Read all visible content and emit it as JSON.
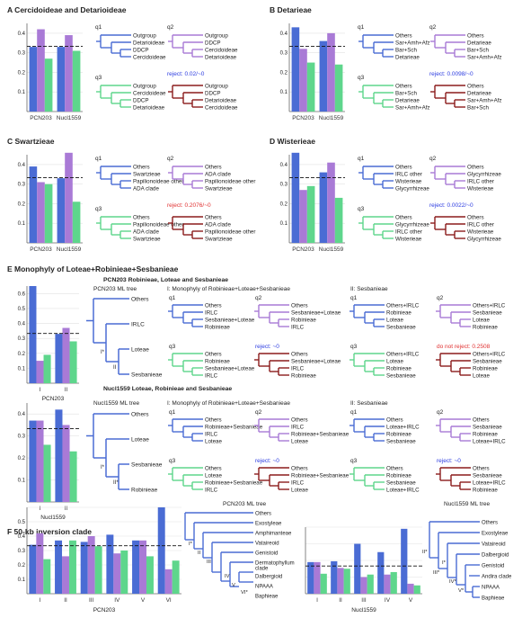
{
  "colors": {
    "blue": "#4a6cd4",
    "purple": "#a97ad6",
    "green": "#5ed68c",
    "red": "#8b1c1c",
    "reject_blue": "#2b3be0",
    "reject_red": "#e03030",
    "axis": "#666666",
    "grid": "#e2e2e2"
  },
  "labels": {
    "q1": "q1",
    "q2": "q2",
    "q3": "q3",
    "pcn203": "PCN203",
    "nucl1559": "Nucl1559",
    "I": "I",
    "II": "II",
    "III": "III",
    "IV": "IV",
    "V": "V",
    "VI": "VI",
    "tick_0": "0",
    "tick_01": "0.1",
    "tick_02": "0.2",
    "tick_03": "0.3",
    "tick_04": "0.4",
    "tick_05": "0.5",
    "tick_06": "0.6"
  },
  "panelA": {
    "title": "A Cercidoideae and Detarioideae",
    "reject": "reject: 0.02/~0",
    "q1": [
      "Outgroup",
      "Detarioideae",
      "DDCP",
      "Cercidoideae"
    ],
    "q2": [
      "Outgroup",
      "DDCP",
      "Cercidoideae",
      "Detarioideae"
    ],
    "q3": [
      "Outgroup",
      "Cercidoideae",
      "DDCP",
      "Detarioideae"
    ],
    "red": [
      "Outgroup",
      "DDCP",
      "Detarioideae",
      "Cercidoideae"
    ]
  },
  "panelB": {
    "title": "B Detarieae",
    "reject": "reject: 0.0098/~0",
    "q1": [
      "Others",
      "Sar+Amh+Afz",
      "Bar+Sch",
      "Detarieae"
    ],
    "q2": [
      "Others",
      "Detarieae",
      "Bar+Sch",
      "Sar+Amh+Afz"
    ],
    "q3": [
      "Others",
      "Bar+Sch",
      "Detarieae",
      "Sar+Amh+Afz"
    ],
    "red": [
      "Others",
      "Detarieae",
      "Sar+Amh+Afz",
      "Bar+Sch"
    ]
  },
  "panelC": {
    "title": "C Swartzieae",
    "reject": "reject: 0.2076/~0",
    "q1": [
      "Others",
      "Swartzieae",
      "Papilionoideae other",
      "ADA clade"
    ],
    "q2": [
      "Others",
      "ADA clade",
      "Papilionoideae other",
      "Swartzieae"
    ],
    "q3": [
      "Others",
      "Papilionoideae other",
      "ADA clade",
      "Swartzieae"
    ],
    "red": [
      "Others",
      "ADA clade",
      "Papilionoideae other",
      "Swartzieae"
    ]
  },
  "panelD": {
    "title": "D Wisterieae",
    "reject": "reject: 0.0022/~0",
    "q1": [
      "Others",
      "IRLC other",
      "Wisterieae",
      "Glycyrrhizeae"
    ],
    "q2": [
      "Others",
      "Glycyrrhizeae",
      "IRLC other",
      "Wisterieae"
    ],
    "q3": [
      "Others",
      "Glycyrrhizeae",
      "IRLC other",
      "Wisterieae"
    ],
    "red": [
      "Others",
      "IRLC other",
      "Wisterieae",
      "Glycyrrhizeae"
    ]
  },
  "panelE": {
    "title": "E Monophyly of Loteae+Robinieae+Sesbanieae",
    "pcn_subtitle": "PCN203 Robinieae, Loteae and Sesbanieae",
    "nucl_subtitle": "Nucl1559 Loteae, Robinieae and Sesbanieae",
    "hyp1": "I: Monophyly of Robinieae+Loteae+Sesbanieae",
    "hyp1_nucl": "I: Monophyly of Robinieae+Loteae+Sesbanieae",
    "hyp2": "II: Sesbanieae",
    "pcn_ml_title": "PCN203 ML tree",
    "pcn_ml": [
      "Others",
      "IRLC",
      "Loteae",
      "Sesbanieae"
    ],
    "pcn_ml_nodes": [
      "I*",
      "II"
    ],
    "nucl_ml_title": "Nucl1559 ML tree",
    "nucl_ml": [
      "Others",
      "Loteae",
      "Sesbanieae",
      "Robinieae"
    ],
    "nucl_ml_nodes": [
      "I*",
      "II*"
    ],
    "p1": {
      "reject": "reject: ~0",
      "q1": [
        "Others",
        "IRLC",
        "Sesbanieae+Loteae",
        "Robinieae"
      ],
      "q2": [
        "Others",
        "Sesbanieae+Loteae",
        "Robinieae",
        "IRLC"
      ],
      "q3": [
        "Others",
        "Robinieae",
        "Sesbanieae+Loteae",
        "IRLC"
      ],
      "red": [
        "Others",
        "Sesbanieae+Loteae",
        "IRLC",
        "Robinieae"
      ]
    },
    "p2": {
      "reject": "do not reject: 0.2508",
      "q1": [
        "Others+IRLC",
        "Robinieae",
        "Loteae",
        "Sesbanieae"
      ],
      "q2": [
        "Others+IRLC",
        "Sesbanieae",
        "Loteae",
        "Robinieae"
      ],
      "q3": [
        "Others+IRLC",
        "Loteae",
        "Robinieae",
        "Sesbanieae"
      ],
      "red": [
        "Others+IRLC",
        "Sesbanieae",
        "Robinieae",
        "Loteae"
      ]
    },
    "n1": {
      "reject": "reject: ~0",
      "q1": [
        "Others",
        "Robinieae+Sesbanieae",
        "IRLC",
        "Loteae"
      ],
      "q2": [
        "Others",
        "IRLC",
        "Robinieae+Sesbanieae",
        "Loteae"
      ],
      "q3": [
        "Others",
        "Loteae",
        "Robinieae+Sesbanieae",
        "IRLC"
      ],
      "red": [
        "Others",
        "Robinieae+Sesbanieae",
        "IRLC",
        "Loteae"
      ]
    },
    "n2": {
      "reject": "reject: ~0",
      "q1": [
        "Others",
        "Loteae+IRLC",
        "Robinieae",
        "Sesbanieae"
      ],
      "q2": [
        "Others",
        "Sesbanieae",
        "Robinieae",
        "Loteae+IRLC"
      ],
      "q3": [
        "Others",
        "Robinieae",
        "Sesbanieae",
        "Loteae+IRLC"
      ],
      "red": [
        "Others",
        "Sesbanieae",
        "Loteae+IRLC",
        "Robinieae"
      ]
    }
  },
  "panelF": {
    "title": "F 50-kb inversion clade",
    "pcn_ml_title": "PCN203 ML tree",
    "pcn_taxa": [
      "Others",
      "Exostyleae",
      "Amphimanteae",
      "Vataireoid",
      "Genistoid",
      "Dermatophyllum",
      "clade",
      "Dalbergioid",
      "NPAAA",
      "Baphieae"
    ],
    "pcn_nodes": [
      "I*",
      "II",
      "III",
      "IV",
      "V",
      "VI*"
    ],
    "nucl_ml_title": "Nucl1559 ML tree",
    "nucl_taxa": [
      "Others",
      "Exostyleae",
      "Vataireoid",
      "Dalbergioid",
      "Genistoid",
      "Andira clade",
      "NPAAA",
      "Baphieae"
    ],
    "nucl_nodes": [
      "II*",
      "I*",
      "III*",
      "IV*",
      "V*"
    ]
  },
  "chart_data": [
    {
      "type": "bar",
      "panel": "A",
      "categories": [
        "PCN203",
        "Nucl1559"
      ],
      "series": [
        {
          "values": [
            0.33,
            0.33
          ]
        },
        {
          "values": [
            0.42,
            0.39
          ]
        },
        {
          "values": [
            0.27,
            0.31
          ]
        }
      ],
      "ylim": [
        0,
        0.45
      ]
    },
    {
      "type": "bar",
      "panel": "B",
      "categories": [
        "PCN203",
        "Nucl1559"
      ],
      "series": [
        {
          "values": [
            0.43,
            0.36
          ]
        },
        {
          "values": [
            0.32,
            0.4
          ]
        },
        {
          "values": [
            0.25,
            0.24
          ]
        }
      ],
      "ylim": [
        0,
        0.45
      ]
    },
    {
      "type": "bar",
      "panel": "C",
      "categories": [
        "PCN203",
        "Nucl1559"
      ],
      "series": [
        {
          "values": [
            0.39,
            0.33
          ]
        },
        {
          "values": [
            0.31,
            0.46
          ]
        },
        {
          "values": [
            0.3,
            0.21
          ]
        }
      ],
      "ylim": [
        0,
        0.45
      ]
    },
    {
      "type": "bar",
      "panel": "D",
      "categories": [
        "PCN203",
        "Nucl1559"
      ],
      "series": [
        {
          "values": [
            0.46,
            0.36
          ]
        },
        {
          "values": [
            0.27,
            0.41
          ]
        },
        {
          "values": [
            0.29,
            0.23
          ]
        }
      ],
      "ylim": [
        0,
        0.45
      ]
    },
    {
      "type": "bar",
      "panel": "E-PCN203",
      "categories": [
        "I",
        "II"
      ],
      "series": [
        {
          "values": [
            0.65,
            0.33
          ]
        },
        {
          "values": [
            0.15,
            0.37
          ]
        },
        {
          "values": [
            0.19,
            0.28
          ]
        }
      ],
      "ylim": [
        0,
        0.65
      ]
    },
    {
      "type": "bar",
      "panel": "E-Nucl1559",
      "categories": [
        "I",
        "II"
      ],
      "series": [
        {
          "values": [
            0.37,
            0.42
          ]
        },
        {
          "values": [
            0.37,
            0.35
          ]
        },
        {
          "values": [
            0.26,
            0.23
          ]
        }
      ],
      "ylim": [
        0,
        0.45
      ]
    },
    {
      "type": "bar",
      "panel": "F-PCN203",
      "categories": [
        "I",
        "II",
        "III",
        "IV",
        "V",
        "VI"
      ],
      "series": [
        {
          "values": [
            0.34,
            0.37,
            0.36,
            0.41,
            0.37,
            0.6
          ]
        },
        {
          "values": [
            0.42,
            0.26,
            0.4,
            0.28,
            0.37,
            0.17
          ]
        },
        {
          "values": [
            0.24,
            0.37,
            0.33,
            0.3,
            0.26,
            0.23
          ]
        }
      ],
      "ylim": [
        0,
        0.6
      ]
    },
    {
      "type": "bar",
      "panel": "F-Nucl1559",
      "categories": [
        "I",
        "II",
        "III",
        "IV",
        "V"
      ],
      "series": [
        {
          "values": [
            0.38,
            0.39,
            0.6,
            0.5,
            0.78
          ]
        },
        {
          "values": [
            0.38,
            0.31,
            0.2,
            0.23,
            0.12
          ]
        },
        {
          "values": [
            0.24,
            0.3,
            0.23,
            0.26,
            0.1
          ]
        }
      ],
      "ylim": [
        0,
        0.8
      ]
    }
  ]
}
